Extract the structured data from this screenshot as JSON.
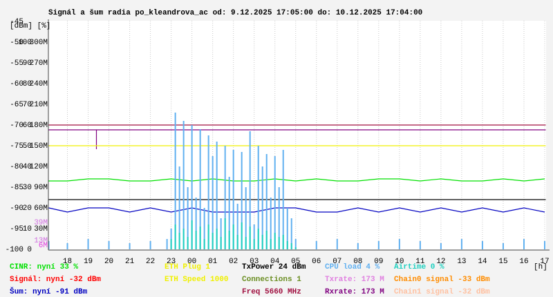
{
  "chart_data": {
    "type": "line",
    "title": "Signál a šum radia po_kleandrova_ac od: 9.12.2025 17:05:00 do: 10.12.2025 17:04:00",
    "y_units": "[dBm] [%]",
    "x_unit": "[h]",
    "xlim": [
      17.0833,
      41.0667
    ],
    "xticks": [
      18,
      19,
      20,
      21,
      22,
      23,
      {
        "value": 24,
        "label": "00"
      },
      {
        "value": 25,
        "label": "01"
      },
      {
        "value": 26,
        "label": "02"
      },
      {
        "value": 27,
        "label": "03"
      },
      {
        "value": 28,
        "label": "04"
      },
      {
        "value": 29,
        "label": "05"
      },
      {
        "value": 30,
        "label": "06"
      },
      {
        "value": 31,
        "label": "07"
      },
      {
        "value": 32,
        "label": "08"
      },
      {
        "value": 33,
        "label": "09"
      },
      {
        "value": 34,
        "label": "10"
      },
      {
        "value": 35,
        "label": "11"
      },
      {
        "value": 36,
        "label": "12"
      },
      {
        "value": 37,
        "label": "13"
      },
      {
        "value": 38,
        "label": "14"
      },
      {
        "value": 39,
        "label": "15"
      },
      {
        "value": 40,
        "label": "16"
      },
      {
        "value": 41,
        "label": "17"
      }
    ],
    "ylim": [
      -100,
      -45
    ],
    "yticks": [
      -100,
      -95,
      -90,
      -85,
      -80,
      -75,
      -70,
      -65,
      -60,
      -55,
      -50,
      -45
    ],
    "y2lim": [
      0,
      110
    ],
    "y2ticks": [
      0,
      10,
      20,
      30,
      40,
      50,
      60,
      70,
      80,
      90,
      100
    ],
    "y3lim": [
      0,
      330
    ],
    "y3ticks": [
      {
        "value": 30,
        "label": "30M"
      },
      {
        "value": 60,
        "label": "60M"
      },
      {
        "value": 90,
        "label": "90M"
      },
      {
        "value": 120,
        "label": "120M"
      },
      {
        "value": 150,
        "label": "150M"
      },
      {
        "value": 180,
        "label": "180M"
      },
      {
        "value": 210,
        "label": "210M"
      },
      {
        "value": 240,
        "label": "240M"
      },
      {
        "value": 270,
        "label": "270M"
      },
      {
        "value": 300,
        "label": "300M"
      }
    ],
    "annotations": [
      {
        "value": 39,
        "label": "39M",
        "color": "#d070e0"
      },
      {
        "value": 13,
        "label": "13M",
        "color": "#d070e0"
      },
      {
        "value": 6,
        "label": "6M",
        "color": "#e040e0"
      }
    ],
    "grid": true,
    "series": [
      {
        "style": "line",
        "color": "#00e000",
        "axis": "y2",
        "x": [
          17.1,
          18,
          19,
          20,
          21,
          22,
          23,
          24,
          25,
          26,
          27,
          28,
          29,
          30,
          31,
          32,
          33,
          34,
          35,
          36,
          37,
          38,
          39,
          40,
          41
        ],
        "values": [
          33,
          33,
          34,
          34,
          33,
          33,
          34,
          33,
          34,
          33,
          33,
          34,
          33,
          34,
          33,
          33,
          34,
          34,
          33,
          34,
          33,
          33,
          34,
          33,
          34
        ]
      },
      {
        "style": "line",
        "color": "#0000c0",
        "axis": "y",
        "x": [
          17.1,
          18,
          19,
          20,
          21,
          22,
          23,
          24,
          25,
          26,
          27,
          28,
          29,
          30,
          31,
          32,
          33,
          34,
          35,
          36,
          37,
          38,
          39,
          40,
          41
        ],
        "values": [
          -90,
          -91,
          -90,
          -90,
          -91,
          -90,
          -91,
          -90,
          -91,
          -91,
          -91,
          -90,
          -90,
          -91,
          -91,
          -90,
          -91,
          -90,
          -91,
          -90,
          -91,
          -90,
          -91,
          -90,
          -91
        ]
      },
      {
        "style": "line",
        "color": "#a01040",
        "axis": "y",
        "x": [
          17.1,
          41.05
        ],
        "values": [
          -70,
          -70
        ]
      },
      {
        "style": "line",
        "color": "#800080",
        "axis": "y3",
        "x": [
          17.1,
          19.4,
          19.4,
          19.4,
          41.05
        ],
        "values": [
          173,
          173,
          145,
          173,
          173
        ]
      },
      {
        "style": "line",
        "color": "#f0f000",
        "axis": "y",
        "x": [
          17.1,
          41.05
        ],
        "values": [
          -75,
          -75
        ]
      },
      {
        "style": "line",
        "color": "#000000",
        "axis": "y2",
        "x": [
          17.1,
          41.05
        ],
        "values": [
          24,
          24
        ]
      },
      {
        "style": "spike",
        "color": "#60b0f0",
        "axis": "y2",
        "x": [
          17.1,
          18,
          19,
          20,
          21,
          22,
          22.8,
          23,
          23.2,
          23.4,
          23.6,
          23.8,
          24,
          24.2,
          24.4,
          24.6,
          24.8,
          25,
          25.2,
          25.4,
          25.6,
          25.8,
          26,
          26.2,
          26.4,
          26.6,
          26.8,
          27,
          27.2,
          27.4,
          27.6,
          27.8,
          28,
          28.2,
          28.4,
          28.6,
          28.8,
          29,
          30,
          31,
          32,
          33,
          34,
          35,
          36,
          37,
          38,
          39,
          40,
          41
        ],
        "values": [
          4,
          3,
          5,
          4,
          3,
          4,
          5,
          10,
          66,
          40,
          62,
          30,
          60,
          25,
          58,
          20,
          55,
          45,
          52,
          15,
          50,
          35,
          48,
          22,
          47,
          30,
          57,
          12,
          50,
          40,
          46,
          25,
          45,
          30,
          48,
          20,
          15,
          5,
          4,
          5,
          3,
          4,
          5,
          4,
          3,
          5,
          4,
          3,
          5,
          4
        ]
      },
      {
        "style": "spike",
        "color": "#20d0c0",
        "axis": "y2",
        "x": [
          23,
          23.2,
          23.4,
          23.6,
          23.8,
          24,
          24.2,
          24.4,
          24.6,
          24.8,
          25,
          25.2,
          25.4,
          25.6,
          25.8,
          26,
          26.2,
          26.4,
          26.6,
          26.8,
          27,
          27.2,
          27.4,
          27.6,
          27.8,
          28,
          28.2,
          28.4,
          28.6,
          28.8,
          29
        ],
        "values": [
          5,
          12,
          8,
          10,
          6,
          14,
          9,
          11,
          5,
          12,
          8,
          10,
          6,
          15,
          9,
          12,
          7,
          13,
          6,
          11,
          5,
          10,
          7,
          9,
          5,
          8,
          6,
          7,
          4,
          3,
          1
        ]
      }
    ],
    "legend": [
      [
        {
          "text": "CINR: nyní 33 %",
          "color": "#00e000"
        },
        {
          "text": "Signál: nyní -32 dBm",
          "color": "#ff0000"
        },
        {
          "text": "Šum: nyní -91 dBm",
          "color": "#0000c0"
        }
      ],
      [
        {
          "text": "ETH Plug 1",
          "color": "#f0f000"
        },
        {
          "text": "ETH Speed 1000",
          "color": "#f0f000"
        }
      ],
      [
        {
          "text": "TxPower 24 dBm",
          "color": "#000000"
        },
        {
          "text": "Connections 1",
          "color": "#6b8e23"
        },
        {
          "text": "Freq 5660 MHz",
          "color": "#a01040"
        }
      ],
      [
        {
          "text": "CPU load 4 %",
          "color": "#60b0f0"
        },
        {
          "text": "Txrate: 173 M",
          "color": "#e080e0"
        },
        {
          "text": "Rxrate: 173 M",
          "color": "#800080"
        }
      ],
      [
        {
          "text": "Airtime 0 %",
          "color": "#20d0c0"
        },
        {
          "text": "Chain0 signal -33 dBm",
          "color": "#ff8c00"
        },
        {
          "text": "Chain1 signal -32 dBm",
          "color": "#ffc0a0"
        }
      ]
    ]
  }
}
